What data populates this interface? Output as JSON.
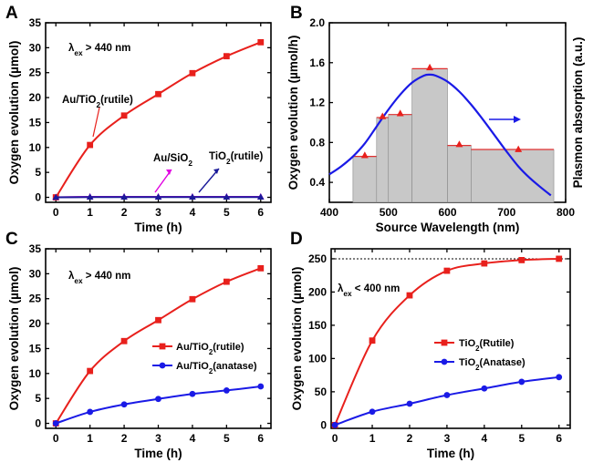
{
  "colors": {
    "red": "#e8201c",
    "blue": "#1a1ae6",
    "magenta": "#e000e0",
    "navy": "#1a1a99",
    "bar_fill": "#c8c8c8",
    "bar_edge": "#e03030",
    "curve_blue": "#1a1ae6"
  },
  "chart_data": [
    {
      "panel": "A",
      "type": "line",
      "xlabel": "Time (h)",
      "ylabel": "Oxygen evolution (µmol)",
      "xlim": [
        -0.3,
        6.3
      ],
      "ylim": [
        -1,
        35
      ],
      "xticks": [
        0,
        1,
        2,
        3,
        4,
        5,
        6
      ],
      "yticks": [
        0,
        5,
        10,
        15,
        20,
        25,
        30,
        35
      ],
      "annotation_main": "> 440 nm",
      "annotation_sym": "λ",
      "annotation_sub": "ex",
      "labels": [
        {
          "text": "Au/TiO",
          "sub": "2",
          "tail": "(rutile)"
        },
        {
          "text": "Au/SiO",
          "sub": "2",
          "tail": ""
        },
        {
          "text": "TiO",
          "sub": "2",
          "tail": "(rutile)"
        }
      ],
      "series": [
        {
          "color": "red",
          "marker": "square",
          "x": [
            0,
            1,
            2,
            3,
            4,
            5,
            6
          ],
          "y": [
            0,
            10.5,
            16.4,
            20.7,
            24.9,
            28.3,
            31.1
          ]
        },
        {
          "color": "magenta",
          "marker": "triangle",
          "x": [
            0,
            1,
            2,
            3,
            4,
            5,
            6
          ],
          "y": [
            0,
            0.1,
            0.1,
            0.1,
            0.1,
            0.1,
            0.1
          ]
        },
        {
          "color": "navy",
          "marker": "triangle",
          "x": [
            0,
            1,
            2,
            3,
            4,
            5,
            6
          ],
          "y": [
            0,
            0.05,
            0.05,
            0.05,
            0.05,
            0.05,
            0.05
          ]
        }
      ]
    },
    {
      "panel": "B",
      "type": "bar",
      "xlabel": "Source Wavelength (nm)",
      "ylabel": "Oxygen evolution (µmol/h)",
      "ylabel_right": "Plasmon absorption (a.u.)",
      "xlim": [
        400,
        800
      ],
      "ylim": [
        0.2,
        2.0
      ],
      "xticks": [
        400,
        500,
        600,
        700,
        800
      ],
      "yticks": [
        0.4,
        0.8,
        1.2,
        1.6,
        2.0
      ],
      "bars": [
        {
          "x0": 440,
          "x1": 480,
          "value": 0.66
        },
        {
          "x0": 480,
          "x1": 500,
          "value": 1.05
        },
        {
          "x0": 500,
          "x1": 540,
          "value": 1.08
        },
        {
          "x0": 540,
          "x1": 600,
          "value": 1.54
        },
        {
          "x0": 600,
          "x1": 640,
          "value": 0.77
        },
        {
          "x0": 640,
          "x1": 780,
          "value": 0.73
        }
      ],
      "points": {
        "x": [
          460,
          490,
          520,
          570,
          620,
          720
        ],
        "y": [
          0.67,
          1.06,
          1.09,
          1.55,
          0.78,
          0.73
        ]
      },
      "absorption_curve": {
        "x": [
          400,
          420,
          440,
          460,
          480,
          500,
          520,
          540,
          560,
          570,
          580,
          600,
          620,
          640,
          660,
          680,
          700,
          720,
          740,
          760,
          775
        ],
        "y": [
          0.48,
          0.56,
          0.66,
          0.79,
          0.96,
          1.13,
          1.28,
          1.4,
          1.47,
          1.48,
          1.47,
          1.41,
          1.31,
          1.18,
          1.03,
          0.87,
          0.71,
          0.56,
          0.44,
          0.34,
          0.27
        ]
      }
    },
    {
      "panel": "C",
      "type": "line",
      "xlabel": "Time (h)",
      "ylabel": "Oxygen evolution (µmol)",
      "xlim": [
        -0.3,
        6.3
      ],
      "ylim": [
        -1,
        35
      ],
      "xticks": [
        0,
        1,
        2,
        3,
        4,
        5,
        6
      ],
      "yticks": [
        0,
        5,
        10,
        15,
        20,
        25,
        30,
        35
      ],
      "annotation_main": "> 440 nm",
      "annotation_sym": "λ",
      "annotation_sub": "ex",
      "legend": [
        {
          "text": "Au/TiO",
          "sub": "2",
          "tail": "(rutile)"
        },
        {
          "text": "Au/TiO",
          "sub": "2",
          "tail": "(anatase)"
        }
      ],
      "series": [
        {
          "color": "red",
          "marker": "square",
          "x": [
            0,
            1,
            2,
            3,
            4,
            5,
            6
          ],
          "y": [
            0,
            10.5,
            16.5,
            20.7,
            24.9,
            28.4,
            31.1
          ]
        },
        {
          "color": "blue",
          "marker": "circle",
          "x": [
            0,
            1,
            2,
            3,
            4,
            5,
            6
          ],
          "y": [
            0,
            2.3,
            3.8,
            4.9,
            5.9,
            6.6,
            7.4
          ]
        }
      ]
    },
    {
      "panel": "D",
      "type": "line",
      "xlabel": "Time (h)",
      "ylabel": "Oxygen evolution (µmol)",
      "xlim": [
        -0.1,
        6.3
      ],
      "ylim": [
        -5,
        265
      ],
      "xticks": [
        0,
        1,
        2,
        3,
        4,
        5,
        6
      ],
      "yticks": [
        0,
        50,
        100,
        150,
        200,
        250
      ],
      "reference_line": 250,
      "annotation_main": "< 400 nm",
      "annotation_sym": "λ",
      "annotation_sub": "ex",
      "legend": [
        {
          "text": "TiO",
          "sub": "2",
          "tail": "(Rutile)"
        },
        {
          "text": "TiO",
          "sub": "2",
          "tail": "(Anatase)"
        }
      ],
      "series": [
        {
          "color": "red",
          "marker": "square",
          "x": [
            0,
            1,
            2,
            3,
            4,
            5,
            6
          ],
          "y": [
            0,
            127,
            195,
            232,
            243,
            248,
            250
          ]
        },
        {
          "color": "blue",
          "marker": "circle",
          "x": [
            0,
            1,
            2,
            3,
            4,
            5,
            6
          ],
          "y": [
            0,
            20,
            32,
            45,
            55,
            65,
            72
          ]
        }
      ]
    }
  ]
}
